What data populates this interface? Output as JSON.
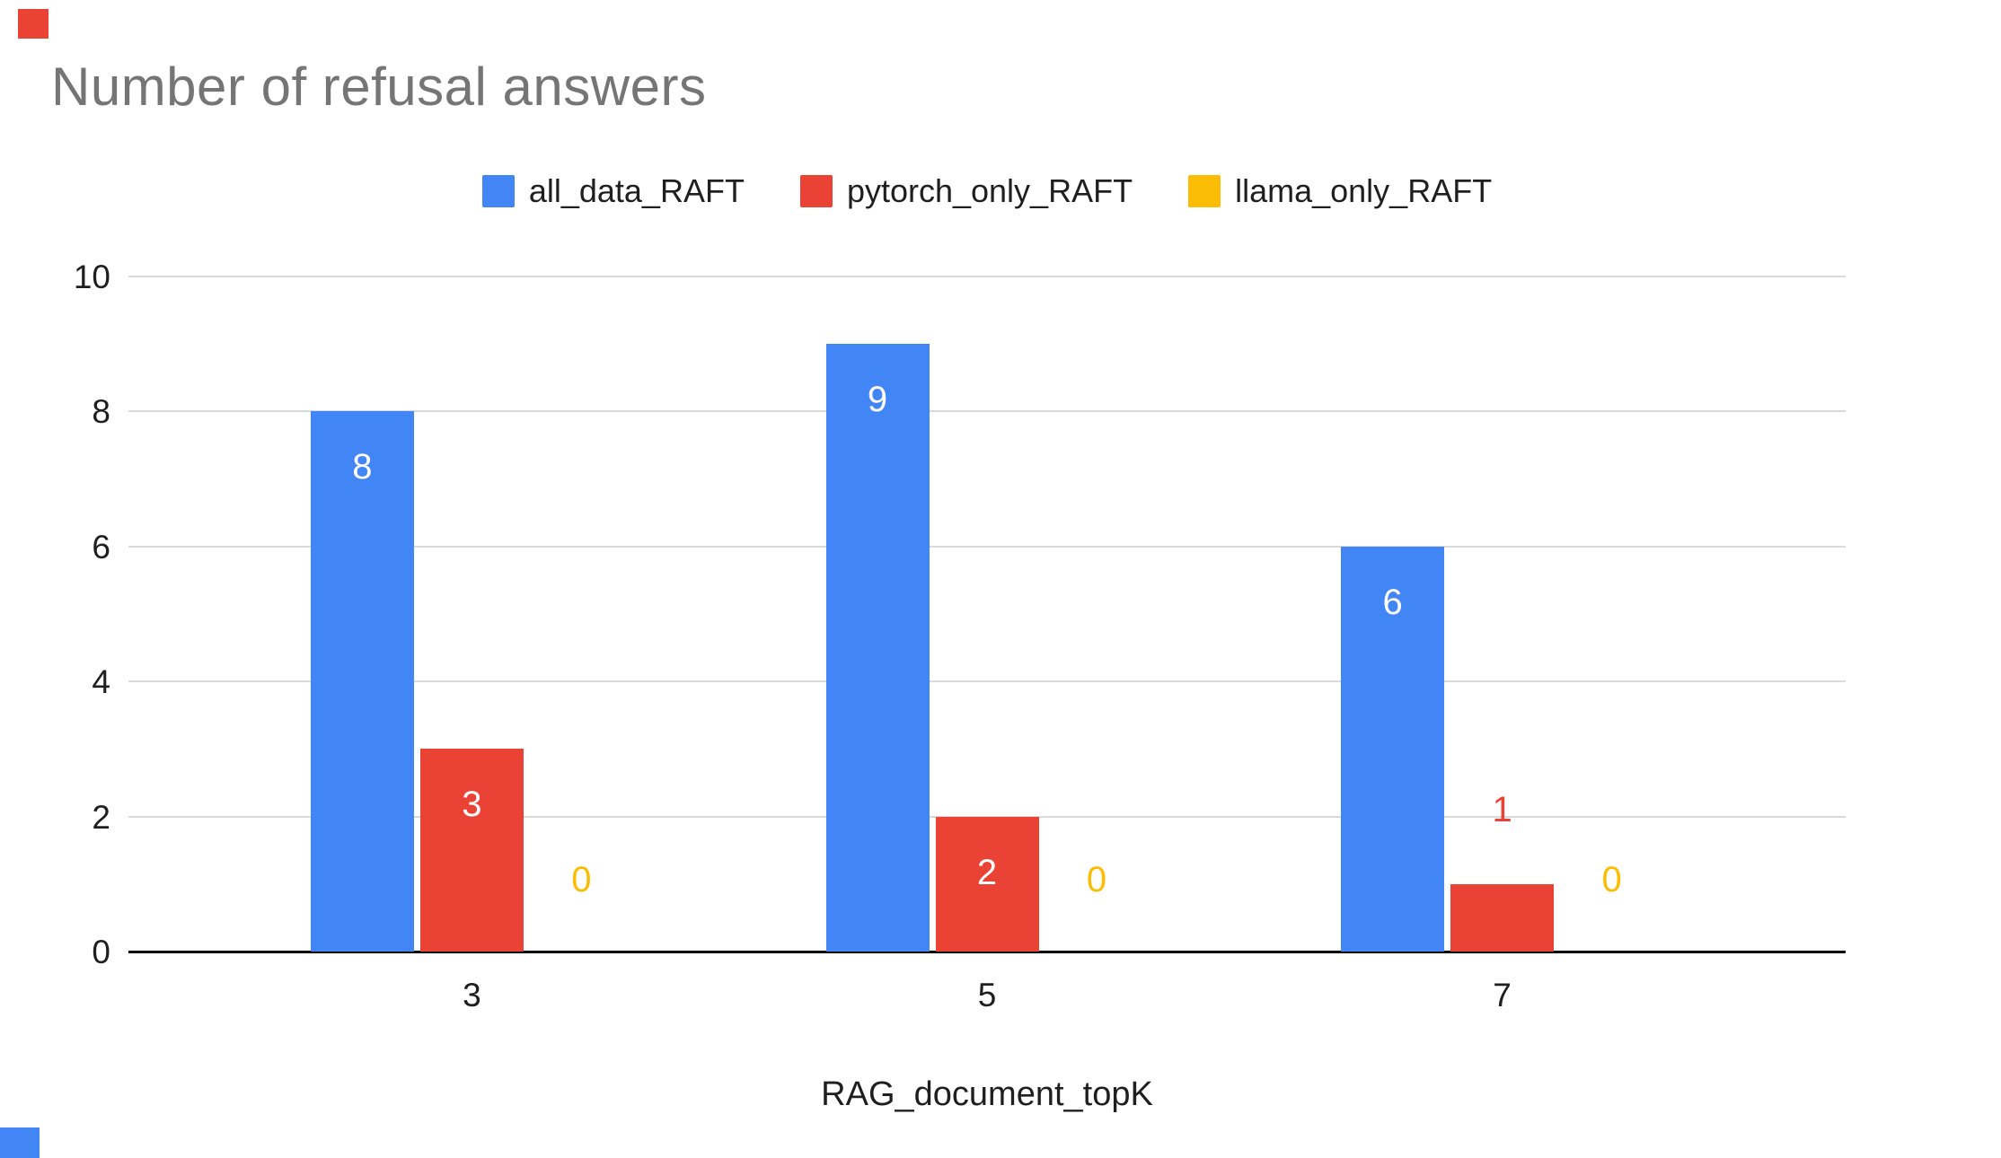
{
  "decorations": {
    "top_left_shape_color": "#ea4335",
    "bottom_left_shape_color": "#4285f4"
  },
  "styles": {
    "title_color": "#757575",
    "axis_text_color": "#1f1f1f",
    "grid_color": "#d9d9d9",
    "axis_line_color": "#000000",
    "inside_bar_label_color": "#ffffff",
    "background": "#ffffff"
  },
  "chart_data": {
    "type": "bar",
    "title": "Number of refusal answers",
    "xlabel": "RAG_document_topK",
    "ylabel": "",
    "categories": [
      "3",
      "5",
      "7"
    ],
    "series": [
      {
        "name": "all_data_RAFT",
        "color": "#4285f4",
        "values": [
          8,
          9,
          6
        ]
      },
      {
        "name": "pytorch_only_RAFT",
        "color": "#ea4335",
        "values": [
          3,
          2,
          1
        ]
      },
      {
        "name": "llama_only_RAFT",
        "color": "#fbbc04",
        "values": [
          0,
          0,
          0
        ]
      }
    ],
    "ylim": [
      0,
      10
    ],
    "yticks": [
      0,
      2,
      4,
      6,
      8,
      10
    ],
    "grid": true,
    "legend_position": "top",
    "data_labels": true
  }
}
